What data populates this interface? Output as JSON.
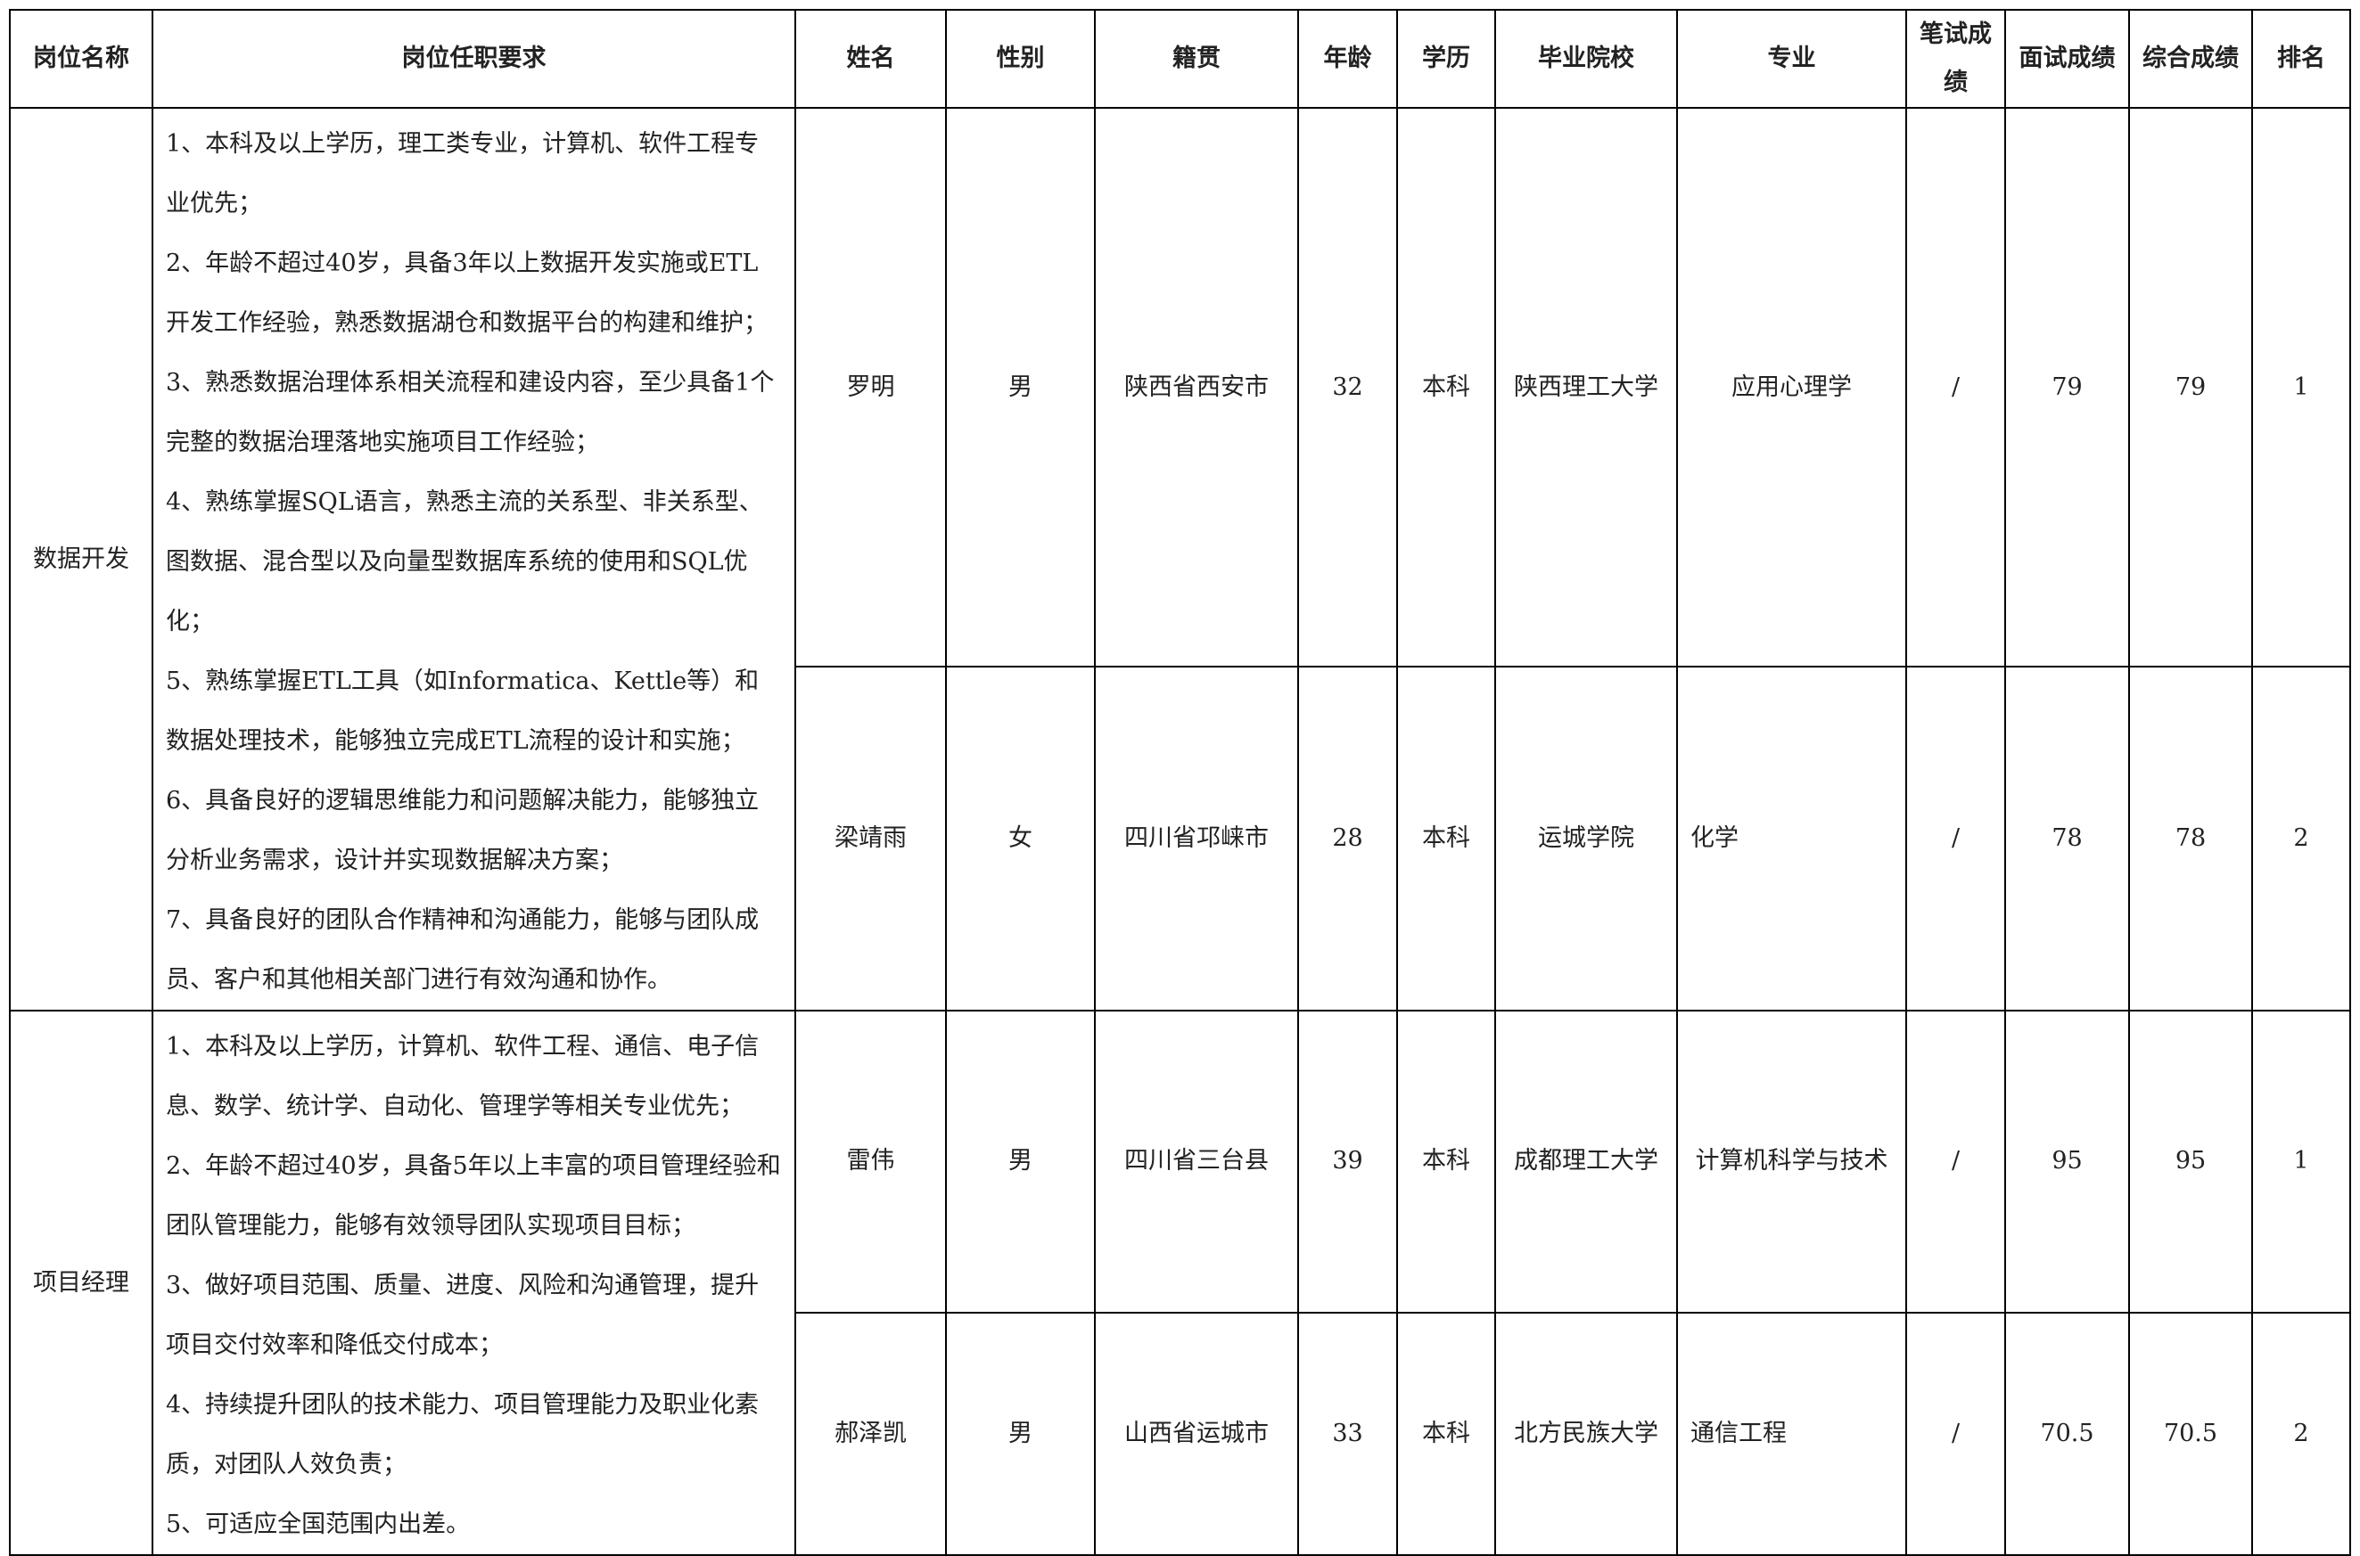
{
  "headers": [
    "岗位名称",
    "岗位任职要求",
    "姓名",
    "性别",
    "籍贯",
    "年龄",
    "学历",
    "毕业院校",
    "专业",
    "笔试成绩",
    "面试成绩",
    "综合成绩",
    "排名"
  ],
  "positions": [
    {
      "name": "数据开发",
      "requirements": [
        "1、本科及以上学历，理工类专业，计算机、软件工程专业优先；",
        "2、年龄不超过40岁，具备3年以上数据开发实施或ETL开发工作经验，熟悉数据湖仓和数据平台的构建和维护；",
        "3、熟悉数据治理体系相关流程和建设内容，至少具备1个完整的数据治理落地实施项目工作经验；",
        "4、熟练掌握SQL语言，熟悉主流的关系型、非关系型、图数据、混合型以及向量型数据库系统的使用和SQL优化；",
        "5、熟练掌握ETL工具（如Informatica、Kettle等）和数据处理技术，能够独立完成ETL流程的设计和实施；",
        "6、具备良好的逻辑思维能力和问题解决能力，能够独立分析业务需求，设计并实现数据解决方案；",
        "7、具备良好的团队合作精神和沟通能力，能够与团队成员、客户和其他相关部门进行有效沟通和协作。"
      ],
      "candidates": [
        {
          "name": "罗明",
          "gender": "男",
          "origin": "陕西省西安市",
          "age": "32",
          "education": "本科",
          "school": "陕西理工大学",
          "major": "应用心理学",
          "written": "/",
          "interview": "79",
          "total": "79",
          "rank": "1"
        },
        {
          "name": "梁靖雨",
          "gender": "女",
          "origin": "四川省邛崃市",
          "age": "28",
          "education": "本科",
          "school": "运城学院",
          "major": "化学",
          "written": "/",
          "interview": "78",
          "total": "78",
          "rank": "2"
        }
      ]
    },
    {
      "name": "项目经理",
      "requirements": [
        "1、本科及以上学历，计算机、软件工程、通信、电子信息、数学、统计学、自动化、管理学等相关专业优先；",
        "2、年龄不超过40岁，具备5年以上丰富的项目管理经验和团队管理能力，能够有效领导团队实现项目目标；",
        "3、做好项目范围、质量、进度、风险和沟通管理，提升项目交付效率和降低交付成本；",
        "4、持续提升团队的技术能力、项目管理能力及职业化素质，对团队人效负责；",
        "5、可适应全国范围内出差。"
      ],
      "candidates": [
        {
          "name": "雷伟",
          "gender": "男",
          "origin": "四川省三台县",
          "age": "39",
          "education": "本科",
          "school": "成都理工大学",
          "major": "计算机科学与技术",
          "written": "/",
          "interview": "95",
          "total": "95",
          "rank": "1"
        },
        {
          "name": "郝泽凯",
          "gender": "男",
          "origin": "山西省运城市",
          "age": "33",
          "education": "本科",
          "school": "北方民族大学",
          "major": "通信工程",
          "written": "/",
          "interview": "70.5",
          "total": "70.5",
          "rank": "2"
        }
      ]
    }
  ]
}
